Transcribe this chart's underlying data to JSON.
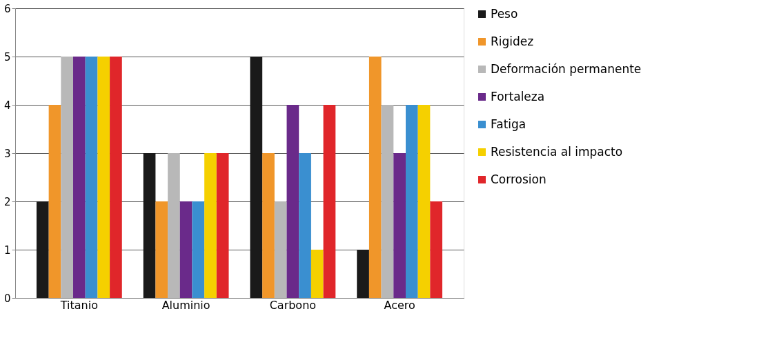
{
  "chart_data": {
    "type": "bar",
    "categories": [
      "Titanio",
      "Aluminio",
      "Carbono",
      "Acero"
    ],
    "series": [
      {
        "name": "Peso",
        "color": "#1a1a1a",
        "values": [
          2,
          3,
          5,
          1
        ]
      },
      {
        "name": "Rigidez",
        "color": "#f0962a",
        "values": [
          4,
          2,
          3,
          5
        ]
      },
      {
        "name": "Deformación permanente",
        "color": "#b8b8b8",
        "values": [
          5,
          3,
          2,
          4
        ]
      },
      {
        "name": "Fortaleza",
        "color": "#6a2a8a",
        "values": [
          5,
          2,
          4,
          3
        ]
      },
      {
        "name": "Fatiga",
        "color": "#3a8fd0",
        "values": [
          5,
          2,
          3,
          4
        ]
      },
      {
        "name": "Resistencia al impacto",
        "color": "#f5d000",
        "values": [
          5,
          3,
          1,
          4
        ]
      },
      {
        "name": "Corrosion",
        "color": "#e0262a",
        "values": [
          5,
          3,
          4,
          2
        ]
      }
    ],
    "ylim": [
      0,
      6
    ],
    "yticks": [
      0,
      1,
      2,
      3,
      4,
      5,
      6
    ],
    "grid": "y",
    "legend": "right"
  }
}
